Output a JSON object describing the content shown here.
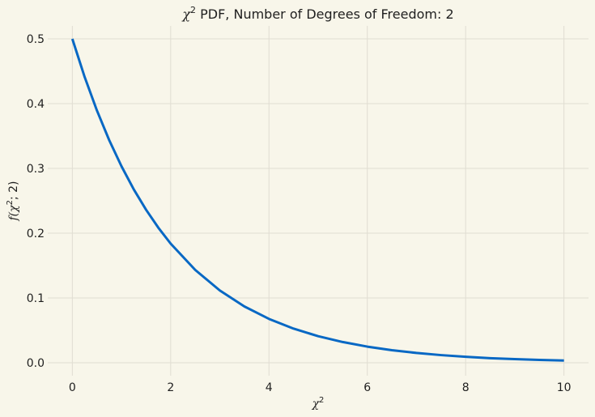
{
  "chart_data": {
    "type": "line",
    "title": {
      "prefix": "χ",
      "sup": "2",
      "rest": " PDF, Number of Degrees of Freedom: 2"
    },
    "xlabel": {
      "base": "χ",
      "sup": "2"
    },
    "ylabel": {
      "pre": "f(",
      "base": "χ",
      "sup": "2",
      "post": "; 2)"
    },
    "xlim": [
      -0.5,
      10.5
    ],
    "ylim": [
      -0.02,
      0.52
    ],
    "x_ticks": [
      0,
      2,
      4,
      6,
      8,
      10
    ],
    "y_ticks": [
      0.0,
      0.1,
      0.2,
      0.3,
      0.4,
      0.5
    ],
    "grid": true,
    "colors": {
      "background": "#f8f6ea",
      "grid": "#e0ddd2",
      "line": "#0868c4"
    },
    "series": [
      {
        "x": [
          0,
          0.25,
          0.5,
          0.75,
          1,
          1.25,
          1.5,
          1.75,
          2,
          2.5,
          3,
          3.5,
          4,
          4.5,
          5,
          5.5,
          6,
          6.5,
          7,
          7.5,
          8,
          8.5,
          9,
          9.5,
          10
        ],
        "y": [
          0.5,
          0.4412,
          0.3894,
          0.3436,
          0.3033,
          0.2676,
          0.2362,
          0.2084,
          0.1839,
          0.1433,
          0.1116,
          0.0869,
          0.0677,
          0.0527,
          0.041,
          0.032,
          0.0249,
          0.0194,
          0.0151,
          0.0118,
          0.0092,
          0.0071,
          0.0056,
          0.0043,
          0.0034
        ]
      }
    ]
  }
}
